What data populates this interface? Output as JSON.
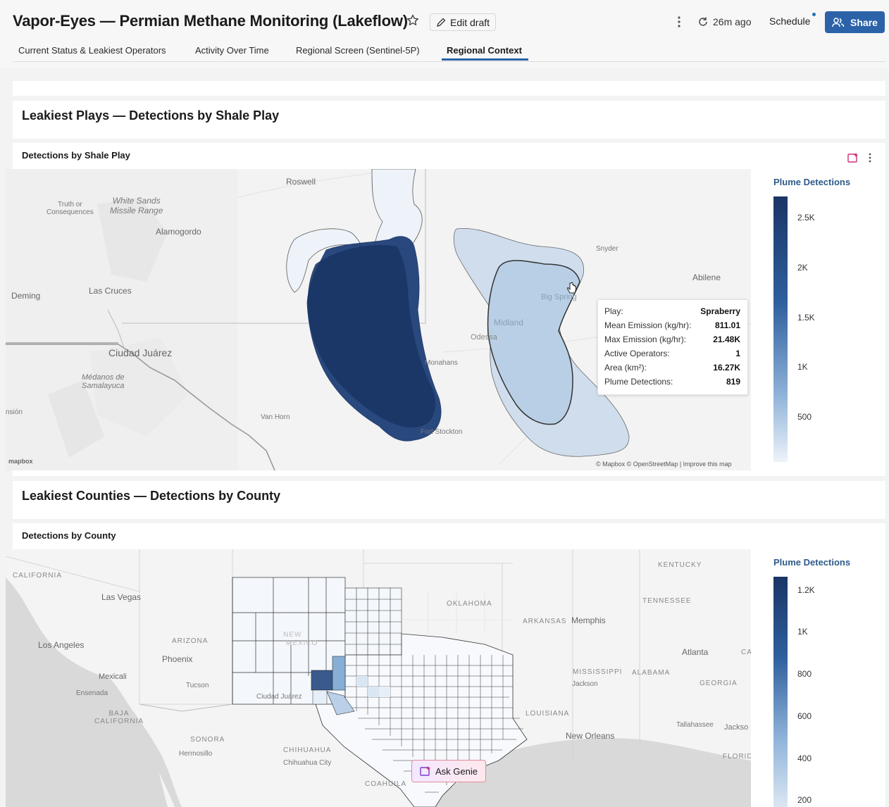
{
  "header": {
    "title": "Vapor-Eyes — Permian Methane Monitoring (Lakeflow)",
    "edit_draft_label": "Edit draft",
    "refresh_label": "26m ago",
    "schedule_label": "Schedule",
    "share_label": "Share"
  },
  "tabs": [
    {
      "label": "Current Status & Leakiest Operators",
      "active": false
    },
    {
      "label": "Activity Over Time",
      "active": false
    },
    {
      "label": "Regional Screen (Sentinel-5P)",
      "active": false
    },
    {
      "label": "Regional Context",
      "active": true
    }
  ],
  "plays_section": {
    "title": "Leakiest Plays — Detections by Shale Play",
    "widget_title": "Detections by Shale Play",
    "legend_title": "Plume Detections",
    "legend_ticks": [
      "2.5K",
      "2K",
      "1.5K",
      "1K",
      "500"
    ],
    "tooltip": [
      {
        "key": "Play:",
        "value": "Spraberry"
      },
      {
        "key": "Mean Emission (kg/hr):",
        "value": "811.01"
      },
      {
        "key": "Max Emission (kg/hr):",
        "value": "21.48K"
      },
      {
        "key": "Active Operators:",
        "value": "1"
      },
      {
        "key": "Area (km²):",
        "value": "16.27K"
      },
      {
        "key": "Plume Detections:",
        "value": "819"
      }
    ],
    "map_labels": {
      "roswell": "Roswell",
      "truth": "Truth or\nConsequences",
      "white_sands": "White Sands\nMissile Range",
      "alamogordo": "Alamogordo",
      "las_cruces": "Las Cruces",
      "deming": "Deming",
      "ciudad_juarez": "Ciudad Juárez",
      "medanos": "Médanos de\nSamalayuca",
      "ension": "nsión",
      "van_horn": "Van Horn",
      "fort_stockton": "Fort Stockton",
      "monahans": "Monahans",
      "odessa": "Odessa",
      "midland": "Midland",
      "big_spring": "Big Spring",
      "snyder": "Snyder",
      "abilene": "Abilene"
    },
    "attribution": "© Mapbox © OpenStreetMap | Improve this map",
    "mapbox_logo": "mapbox"
  },
  "counties_section": {
    "title": "Leakiest Counties — Detections by County",
    "widget_title": "Detections by County",
    "legend_title": "Plume Detections",
    "legend_ticks": [
      "1.2K",
      "1K",
      "800",
      "600",
      "400",
      "200"
    ],
    "map_labels": {
      "california": "CALIFORNIA",
      "las_vegas": "Las Vegas",
      "los_angeles": "Los Angeles",
      "arizona": "ARIZONA",
      "phoenix": "Phoenix",
      "mexicali": "Mexicali",
      "ensenada": "Ensenada",
      "tucson": "Tucson",
      "baja": "BAJA\nCALIFORNIA",
      "sonora": "SONORA",
      "hermosillo": "Hermosillo",
      "chihuahua": "CHIHUAHUA",
      "chihuahua_city": "Chihuahua City",
      "coahuila": "COAHUILA",
      "ciudad_juarez": "Ciudad Juárez",
      "new_mexico_a": "NEW",
      "new_mexico_b": "MEXICO",
      "oklahoma": "OKLAHOMA",
      "arkansas": "ARKANSAS",
      "memphis": "Memphis",
      "kentucky": "KENTUCKY",
      "tennessee": "TENNESSEE",
      "atlanta": "Atlanta",
      "mississippi": "MISSISSIPPI",
      "alabama": "ALABAMA",
      "georgia": "GEORGIA",
      "jackson": "Jackson",
      "louisiana": "LOUISIANA",
      "new_orleans": "New Orleans",
      "tallahassee": "Tallahassee",
      "jackson_fl": "Jackso",
      "florida": "FLORIDA",
      "ca_edge": "CA"
    },
    "ask_genie_label": "Ask Genie"
  },
  "colors": {
    "accent": "#2c62a8",
    "scale_dark": "#1a3566",
    "scale_light": "#eef3fa"
  }
}
